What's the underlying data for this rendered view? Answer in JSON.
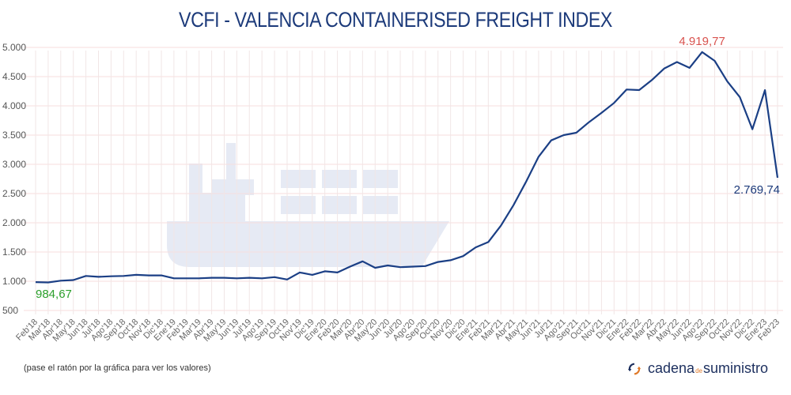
{
  "chart_data": {
    "type": "line",
    "title": "VCFI - VALENCIA CONTAINERISED FREIGHT INDEX",
    "xlabel": "",
    "ylabel": "",
    "ylim": [
      500,
      5000
    ],
    "yticks": [
      500,
      1000,
      1500,
      2000,
      2500,
      3000,
      3500,
      4000,
      4500,
      5000
    ],
    "ytick_labels": [
      "500",
      "1.000",
      "1.500",
      "2.000",
      "2.500",
      "3.000",
      "3.500",
      "4.000",
      "4.500",
      "5.000"
    ],
    "grid": true,
    "categories": [
      "Feb'18",
      "Mar'18",
      "Abr'18",
      "May'18",
      "Jun'18",
      "Jul'18",
      "Ago'18",
      "Sep'18",
      "Oct'18",
      "Nov'18",
      "Dic'18",
      "Ene'19",
      "Feb'19",
      "Mar'19",
      "Abr'19",
      "May'19",
      "Jun'19",
      "Jul'19",
      "Ago'19",
      "Sep'19",
      "Oct'19",
      "Nov'19",
      "Dic'19",
      "Ene'20",
      "Feb'20",
      "Mar'20",
      "Abr'20",
      "May'20",
      "Jun'20",
      "Jul'20",
      "Ago'20",
      "Sep'20",
      "Oct'20",
      "Nov'20",
      "Dic'20",
      "Ene'21",
      "Feb'21",
      "Mar'21",
      "Abr'21",
      "May'21",
      "Jun'21",
      "Jul'21",
      "Ago'21",
      "Sep'21",
      "Oct'21",
      "Nov'21",
      "Dic'21",
      "Ene'22",
      "Feb'22",
      "Mar'22",
      "Abr'22",
      "May'22",
      "Jun'22",
      "Ago'22",
      "Sep'22",
      "Oct'22",
      "Nov'22",
      "Dic'22",
      "Ene'23",
      "Feb'23"
    ],
    "series": [
      {
        "name": "VCFI",
        "color": "#1b3f85",
        "values": [
          984.67,
          980,
          1010,
          1020,
          1090,
          1075,
          1085,
          1090,
          1110,
          1100,
          1100,
          1050,
          1050,
          1050,
          1060,
          1060,
          1050,
          1060,
          1050,
          1070,
          1030,
          1150,
          1110,
          1170,
          1150,
          1250,
          1340,
          1230,
          1270,
          1240,
          1250,
          1260,
          1330,
          1360,
          1430,
          1580,
          1670,
          1950,
          2300,
          2700,
          3130,
          3410,
          3500,
          3540,
          3720,
          3880,
          4050,
          4280,
          4270,
          4440,
          4640,
          4750,
          4650,
          4919.77,
          4770,
          4420,
          4150,
          3600,
          4270,
          2769.74
        ]
      }
    ],
    "annotations": [
      {
        "label": "984,67",
        "category": "Feb'18",
        "value": 984.67,
        "color": "#2ca02c",
        "position": "below"
      },
      {
        "label": "4.919,77",
        "category": "Ago'22",
        "value": 4919.77,
        "color": "#d9534f",
        "position": "above"
      },
      {
        "label": "2.769,74",
        "category": "Feb'23",
        "value": 2769.74,
        "color": "#1c3a7a",
        "position": "below-left"
      }
    ],
    "legend": "none"
  },
  "footer": {
    "hint": "(pase el ratón por la gráfica para ver los valores)",
    "brand_part1": "cadena",
    "brand_part2": "de",
    "brand_part3": "suministro"
  },
  "colors": {
    "line": "#1b3f85",
    "title": "#1c3a7a",
    "watermark": "#e6eaf4",
    "grid_h": "#f7dede",
    "grid_v": "#f1e6e6"
  }
}
